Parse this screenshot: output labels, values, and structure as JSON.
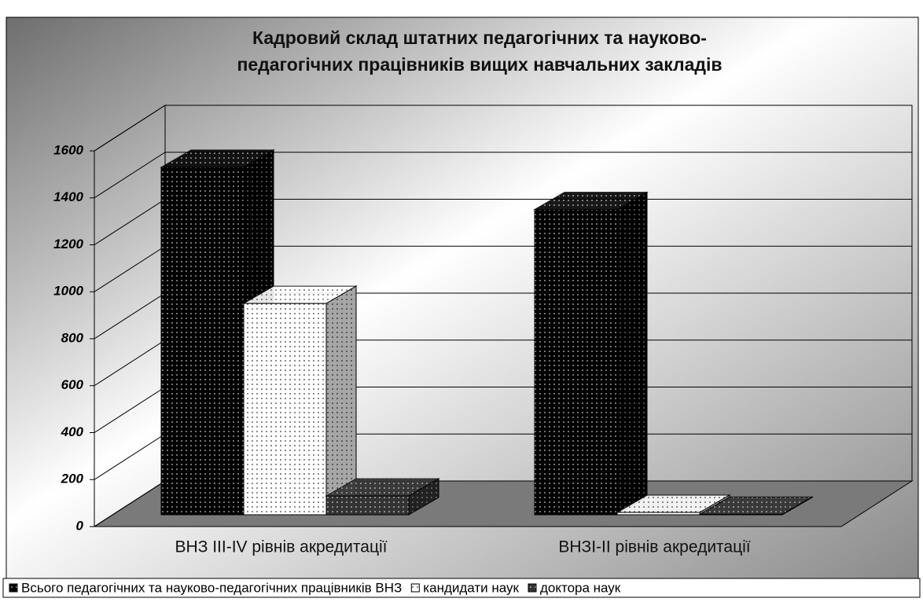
{
  "chart_data": {
    "type": "bar3d",
    "title": [
      "Кадровий склад штатних педагогічних та науково-",
      "педагогічних працівників вищих навчальних закладів"
    ],
    "categories": [
      "ВНЗ III-IV рівнів акредитації",
      "ВНЗI-II рівнів акредитації"
    ],
    "series": [
      {
        "name": "Всього педагогічних та науково-педагогічних працівників ВНЗ",
        "color": "#000000",
        "values": [
          1480,
          1300
        ]
      },
      {
        "name": "кандидати наук",
        "color": "#ffffff",
        "values": [
          900,
          10
        ]
      },
      {
        "name": "доктора наук",
        "color": "#333333",
        "values": [
          80,
          2
        ]
      }
    ],
    "ylim": [
      0,
      1600
    ],
    "yticks": [
      0,
      200,
      400,
      600,
      800,
      1000,
      1200,
      1400,
      1600
    ],
    "grid": true
  }
}
